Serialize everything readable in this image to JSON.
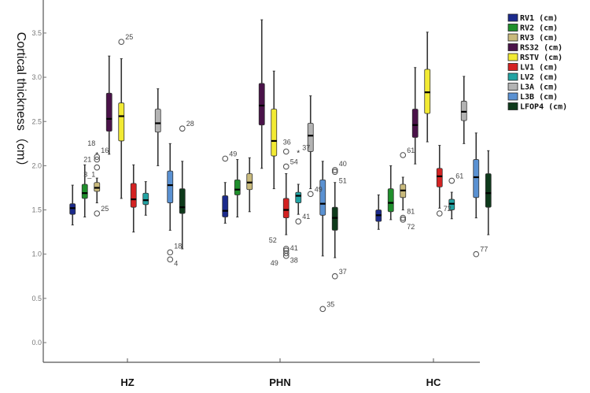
{
  "chart_data": {
    "type": "boxplot",
    "title": "",
    "xlabel": "",
    "ylabel": "Cortical thickness（cm）",
    "ylim": [
      -0.25,
      3.9
    ],
    "yticks": [
      "0.0",
      "0.5",
      "1.0",
      "1.5",
      "2.0",
      "2.5",
      "3.0",
      "3.5"
    ],
    "grid": false,
    "legend_position": "top-right",
    "categories": [
      "HZ",
      "PHN",
      "HC"
    ],
    "series": [
      {
        "name": "RV1 (cm)",
        "color": "#1b2a8c",
        "boxes": [
          [
            1.33,
            1.45,
            1.52,
            1.57,
            1.78
          ],
          [
            1.35,
            1.42,
            1.49,
            1.66,
            1.81
          ],
          [
            1.28,
            1.37,
            1.44,
            1.5,
            1.67
          ]
        ]
      },
      {
        "name": "RV2 (cm)",
        "color": "#1f8f2c",
        "boxes": [
          [
            1.42,
            1.63,
            1.69,
            1.79,
            2.01
          ],
          [
            1.42,
            1.67,
            1.73,
            1.84,
            2.07
          ],
          [
            1.39,
            1.48,
            1.58,
            1.74,
            2.0
          ]
        ]
      },
      {
        "name": "RV3 (cm)",
        "color": "#c9ba7c",
        "boxes": [
          [
            1.58,
            1.71,
            1.75,
            1.81,
            1.86
          ],
          [
            1.48,
            1.73,
            1.81,
            1.91,
            2.09
          ],
          [
            1.5,
            1.64,
            1.72,
            1.79,
            1.87
          ]
        ]
      },
      {
        "name": "RS32 (cm)",
        "color": "#4a1249",
        "boxes": [
          [
            2.13,
            2.39,
            2.53,
            2.82,
            3.24
          ],
          [
            1.97,
            2.46,
            2.68,
            2.93,
            3.65
          ],
          [
            2.02,
            2.32,
            2.46,
            2.64,
            3.11
          ]
        ]
      },
      {
        "name": "RSTV (cm)",
        "color": "#f2ea33",
        "boxes": [
          [
            1.63,
            2.28,
            2.56,
            2.71,
            3.21
          ],
          [
            1.74,
            2.11,
            2.28,
            2.64,
            3.07
          ],
          [
            2.27,
            2.59,
            2.83,
            3.09,
            3.51
          ]
        ]
      },
      {
        "name": "LV1 (cm)",
        "color": "#d42222",
        "boxes": [
          [
            1.25,
            1.53,
            1.62,
            1.8,
            2.01
          ],
          [
            1.22,
            1.41,
            1.5,
            1.63,
            1.91
          ],
          [
            1.52,
            1.76,
            1.88,
            1.97,
            2.23
          ]
        ]
      },
      {
        "name": "LV2 (cm)",
        "color": "#22a3a3",
        "boxes": [
          [
            1.44,
            1.56,
            1.61,
            1.69,
            1.82
          ],
          [
            1.45,
            1.58,
            1.66,
            1.7,
            1.79
          ],
          [
            1.4,
            1.5,
            1.57,
            1.62,
            1.7
          ]
        ]
      },
      {
        "name": "L3A (cm)",
        "color": "#b3b3b3",
        "boxes": [
          [
            2.0,
            2.38,
            2.48,
            2.64,
            2.87
          ],
          [
            1.74,
            2.16,
            2.34,
            2.48,
            2.79
          ],
          [
            2.25,
            2.51,
            2.61,
            2.73,
            3.01
          ]
        ]
      },
      {
        "name": "L3B (cm)",
        "color": "#5a91d2",
        "boxes": [
          [
            1.27,
            1.58,
            1.78,
            1.94,
            2.25
          ],
          [
            0.98,
            1.44,
            1.57,
            1.84,
            2.05
          ],
          [
            1.41,
            1.64,
            1.87,
            2.07,
            2.37
          ]
        ]
      },
      {
        "name": "LFOP4 (cm)",
        "color": "#0e3a1b",
        "boxes": [
          [
            1.06,
            1.46,
            1.53,
            1.74,
            2.05
          ],
          [
            0.96,
            1.27,
            1.41,
            1.53,
            1.81
          ],
          [
            1.22,
            1.53,
            1.69,
            1.91,
            2.17
          ]
        ]
      }
    ],
    "outliers": [
      {
        "category": 0,
        "series": 2,
        "value": 2.1,
        "label": "18",
        "marker": "circle"
      },
      {
        "category": 0,
        "series": 2,
        "value": 2.07,
        "label": "21",
        "marker": "circle"
      },
      {
        "category": 0,
        "series": 2,
        "value": 2.13,
        "label": "16",
        "marker": "star"
      },
      {
        "category": 0,
        "series": 2,
        "value": 1.98,
        "label": "3_1",
        "marker": "circle"
      },
      {
        "category": 0,
        "series": 2,
        "value": 1.46,
        "label": "25",
        "marker": "circle"
      },
      {
        "category": 0,
        "series": 4,
        "value": 3.4,
        "label": "25",
        "marker": "circle"
      },
      {
        "category": 0,
        "series": 8,
        "value": 1.02,
        "label": "18",
        "marker": "circle"
      },
      {
        "category": 0,
        "series": 8,
        "value": 0.94,
        "label": "4",
        "marker": "circle"
      },
      {
        "category": 0,
        "series": 9,
        "value": 2.42,
        "label": "28",
        "marker": "circle"
      },
      {
        "category": 1,
        "series": 0,
        "value": 2.08,
        "label": "49",
        "marker": "circle"
      },
      {
        "category": 1,
        "series": 5,
        "value": 2.16,
        "label": "36",
        "marker": "circle"
      },
      {
        "category": 1,
        "series": 5,
        "value": 1.99,
        "label": "54",
        "marker": "circle"
      },
      {
        "category": 1,
        "series": 5,
        "value": 1.06,
        "label": "52",
        "marker": "circle"
      },
      {
        "category": 1,
        "series": 5,
        "value": 1.04,
        "label": "41",
        "marker": "circle"
      },
      {
        "category": 1,
        "series": 5,
        "value": 1.01,
        "label": "38",
        "marker": "circle"
      },
      {
        "category": 1,
        "series": 5,
        "value": 0.98,
        "label": "49",
        "marker": "circle"
      },
      {
        "category": 1,
        "series": 6,
        "value": 2.15,
        "label": "37",
        "marker": "star"
      },
      {
        "category": 1,
        "series": 6,
        "value": 1.37,
        "label": "41",
        "marker": "circle"
      },
      {
        "category": 1,
        "series": 7,
        "value": 1.68,
        "label": "49",
        "marker": "circle"
      },
      {
        "category": 1,
        "series": 8,
        "value": 0.38,
        "label": "35",
        "marker": "circle"
      },
      {
        "category": 1,
        "series": 9,
        "value": 1.95,
        "label": "40",
        "marker": "circle"
      },
      {
        "category": 1,
        "series": 9,
        "value": 1.93,
        "label": "51",
        "marker": "circle"
      },
      {
        "category": 1,
        "series": 9,
        "value": 0.75,
        "label": "37",
        "marker": "circle"
      },
      {
        "category": 2,
        "series": 2,
        "value": 2.12,
        "label": "61",
        "marker": "circle"
      },
      {
        "category": 2,
        "series": 2,
        "value": 1.41,
        "label": "81",
        "marker": "circle"
      },
      {
        "category": 2,
        "series": 2,
        "value": 1.39,
        "label": "72",
        "marker": "circle"
      },
      {
        "category": 2,
        "series": 5,
        "value": 1.46,
        "label": "72",
        "marker": "circle"
      },
      {
        "category": 2,
        "series": 6,
        "value": 1.83,
        "label": "61",
        "marker": "circle"
      },
      {
        "category": 2,
        "series": 8,
        "value": 1.0,
        "label": "77",
        "marker": "circle"
      }
    ]
  }
}
